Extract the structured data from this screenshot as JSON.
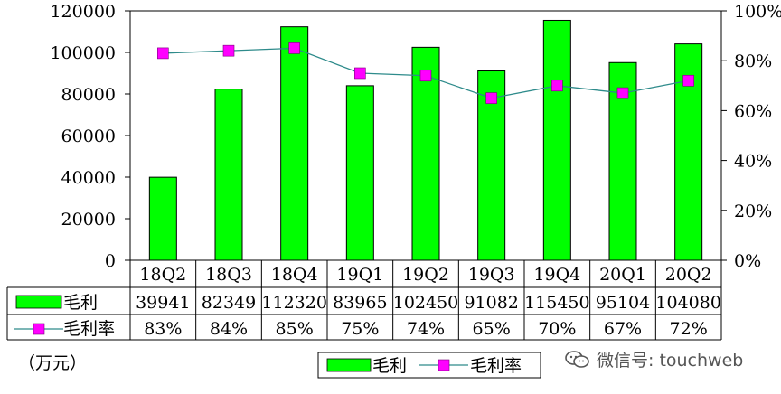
{
  "chart_data": {
    "type": "bar",
    "categories": [
      "18Q2",
      "18Q3",
      "18Q4",
      "19Q1",
      "19Q2",
      "19Q3",
      "19Q4",
      "20Q1",
      "20Q2"
    ],
    "series": [
      {
        "name": "毛利",
        "kind": "bar",
        "axis": "left",
        "color": "#00ff00",
        "values": [
          39941,
          82349,
          112320,
          83965,
          102450,
          91082,
          115450,
          95104,
          104080
        ]
      },
      {
        "name": "毛利率",
        "kind": "line",
        "axis": "right",
        "color": "#ff00ff",
        "line_color": "#2e8b8b",
        "values": [
          83,
          84,
          85,
          75,
          74,
          65,
          70,
          67,
          72
        ],
        "labels": [
          "83%",
          "84%",
          "85%",
          "75%",
          "74%",
          "65%",
          "70%",
          "67%",
          "72%"
        ]
      }
    ],
    "y_left": {
      "ylim": [
        0,
        120000
      ],
      "ticks": [
        "0",
        "20000",
        "40000",
        "60000",
        "80000",
        "100000",
        "120000"
      ]
    },
    "y_right": {
      "ylim": [
        0,
        100
      ],
      "ticks": [
        "0%",
        "20%",
        "40%",
        "60%",
        "80%",
        "100%"
      ]
    },
    "unit_label": "（万元）",
    "legend": {
      "placement": "bottom",
      "items": [
        "毛利",
        "毛利率"
      ]
    },
    "data_table": true,
    "grid": false
  },
  "watermark": {
    "text": "微信号: touchweb",
    "icon": "wechat-icon"
  }
}
